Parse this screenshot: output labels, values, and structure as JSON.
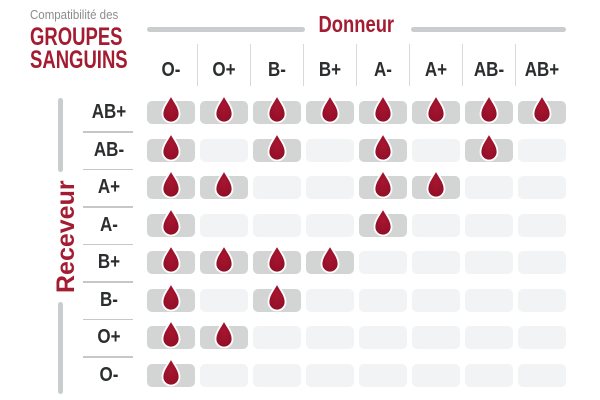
{
  "title": {
    "eyebrow": "Compatibilité des",
    "line1": "GROUPES",
    "line2": "SANGUINS"
  },
  "axes": {
    "donor": "Donneur",
    "receiver": "Receveur"
  },
  "chart_data": {
    "type": "heatmap",
    "title": "Compatibilité des GROUPES SANGUINS",
    "x_axis_label": "Donneur",
    "y_axis_label": "Receveur",
    "columns": [
      "O-",
      "O+",
      "B-",
      "B+",
      "A-",
      "A+",
      "AB-",
      "AB+"
    ],
    "rows": [
      "AB+",
      "AB-",
      "A+",
      "A-",
      "B+",
      "B-",
      "O+",
      "O-"
    ],
    "compatible": [
      [
        1,
        1,
        1,
        1,
        1,
        1,
        1,
        1
      ],
      [
        1,
        0,
        1,
        0,
        1,
        0,
        1,
        0
      ],
      [
        1,
        1,
        0,
        0,
        1,
        1,
        0,
        0
      ],
      [
        1,
        0,
        0,
        0,
        1,
        0,
        0,
        0
      ],
      [
        1,
        1,
        1,
        1,
        0,
        0,
        0,
        0
      ],
      [
        1,
        0,
        1,
        0,
        0,
        0,
        0,
        0
      ],
      [
        1,
        1,
        0,
        0,
        0,
        0,
        0,
        0
      ],
      [
        1,
        0,
        0,
        0,
        0,
        0,
        0,
        0
      ]
    ],
    "marker_icon": "blood-drop-icon",
    "legend_position": "none",
    "grid": "off"
  },
  "colors": {
    "accent_red": "#a31c31",
    "drop_red": "#a81530",
    "drop_red_dark": "#8e0e26",
    "cell_active": "#d3d5d5",
    "cell_empty": "#f2f3f4",
    "rule_gray": "#c9cdcd",
    "divider_gray": "#d8dada",
    "text_dark": "#2b2d2e",
    "text_gray": "#8c8c8c",
    "background": "#ffffff"
  }
}
